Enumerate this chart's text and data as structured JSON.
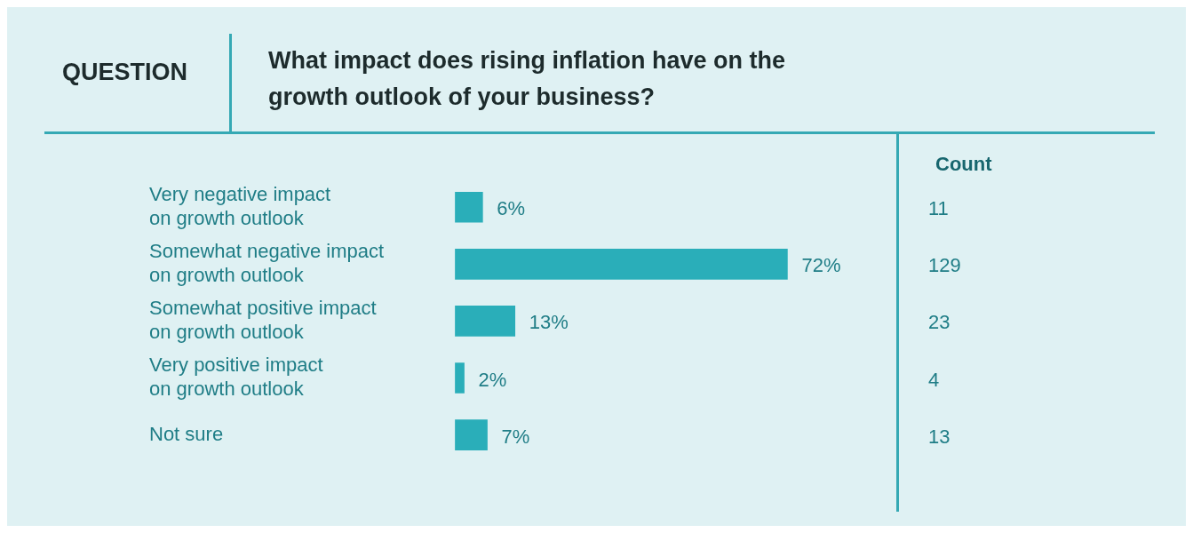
{
  "chart_data": {
    "type": "bar",
    "orientation": "horizontal",
    "subtitle": "QUESTION",
    "title": "What impact does rising inflation have on the growth outlook of your business?",
    "categories": [
      "Very negative impact on growth outlook",
      "Somewhat negative impact on growth outlook",
      "Somewhat positive impact on growth outlook",
      "Very positive impact on growth outlook",
      "Not sure"
    ],
    "values": [
      6,
      72,
      13,
      2,
      7
    ],
    "value_labels": [
      "6%",
      "72%",
      "13%",
      "2%",
      "7%"
    ],
    "color": "#2aaeb9",
    "annotations": [
      "Count",
      "11",
      "129",
      "23",
      "4",
      "13"
    ],
    "grid": false,
    "legend": false
  }
}
